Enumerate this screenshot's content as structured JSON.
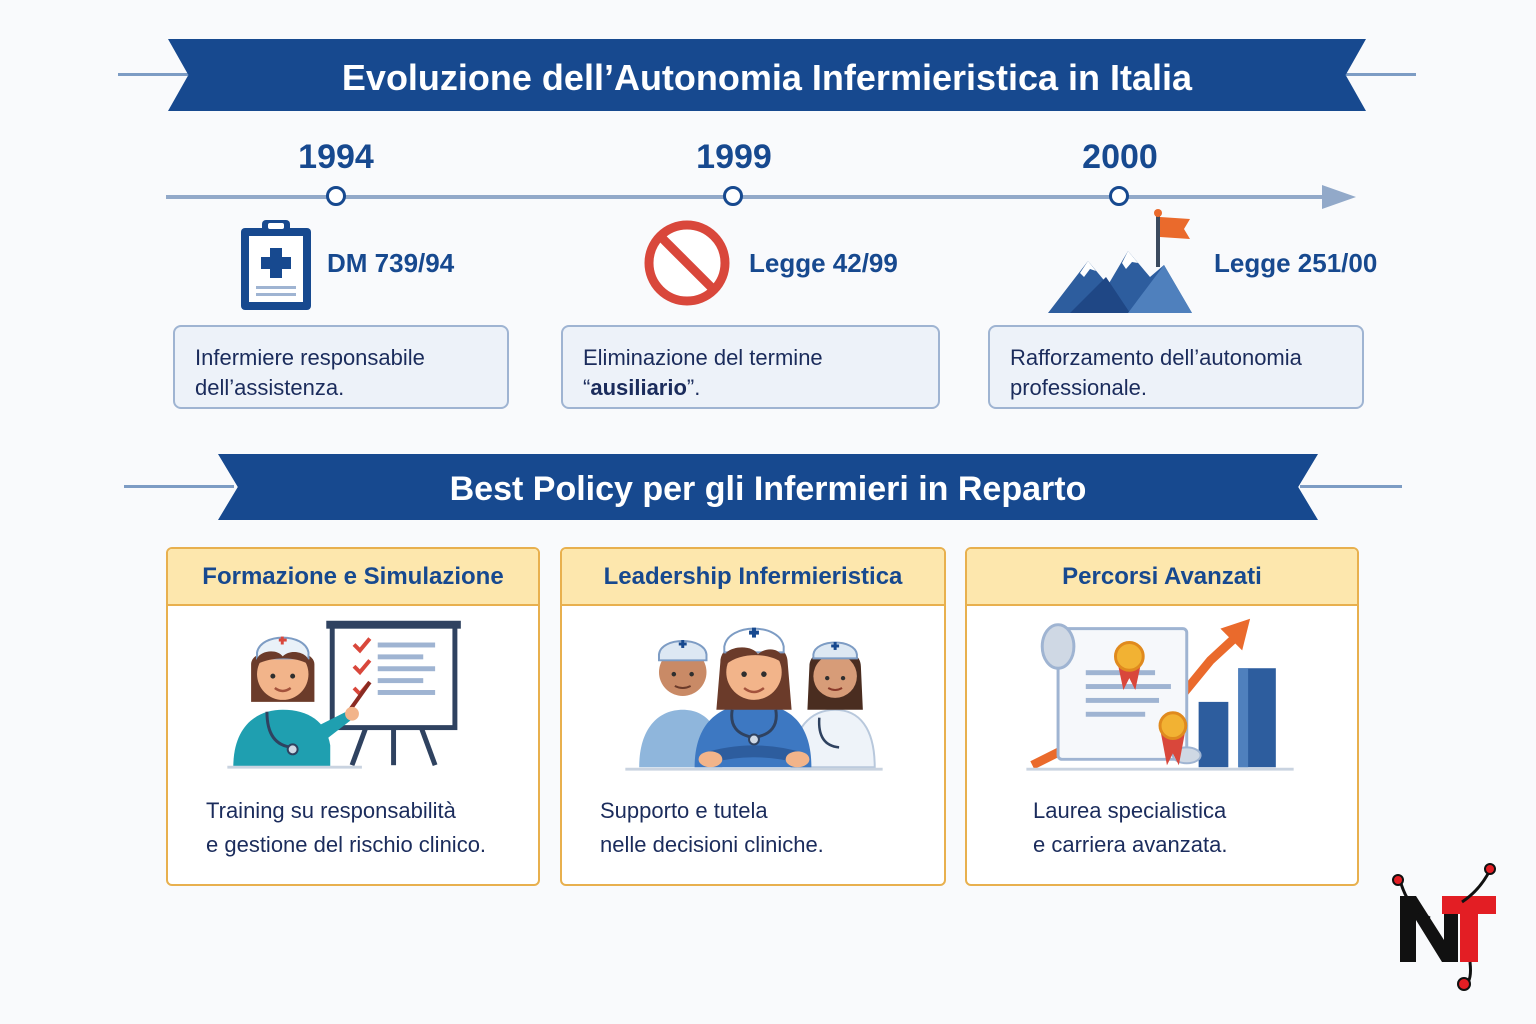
{
  "header": {
    "title": "Evoluzione dell’Autonomia Infermieristica in Italia"
  },
  "timeline": {
    "events": [
      {
        "year": "1994",
        "law": "DM 739/94",
        "icon": "clipboard-cross-icon",
        "desc_lines": [
          "Infermiere responsabile",
          "dell’assistenza."
        ]
      },
      {
        "year": "1999",
        "law": "Legge 42/99",
        "icon": "prohibition-icon",
        "desc_line1": "Eliminazione del termine",
        "desc_quote_open": "“",
        "desc_bold": "ausiliario",
        "desc_quote_close": "”."
      },
      {
        "year": "2000",
        "law": "Legge 251/00",
        "icon": "mountain-flag-icon",
        "desc_lines": [
          "Rafforzamento dell’autonomia",
          "professionale."
        ]
      }
    ]
  },
  "policies": {
    "title": "Best Policy per gli Infermieri in Reparto",
    "cards": [
      {
        "title": "Formazione e Simulazione",
        "icon": "nurse-presentation-icon",
        "lines": [
          "Training su responsabilità",
          "e gestione del rischio clinico."
        ]
      },
      {
        "title": "Leadership Infermieristica",
        "icon": "nurse-team-icon",
        "lines": [
          "Supporto e tutela",
          "nelle decisioni cliniche."
        ]
      },
      {
        "title": "Percorsi Avanzati",
        "icon": "diploma-growth-chart-icon",
        "lines": [
          "Laurea specialistica",
          "e carriera avanzata."
        ]
      }
    ]
  },
  "colors": {
    "navy": "#17498f",
    "gold_border": "#e8b04e",
    "card_header": "#fde7ad",
    "note_bg": "#edf2f9",
    "red": "#d9473b",
    "orange": "#ea6a2c"
  },
  "logo": {
    "text": "NT",
    "icon": "nt-stethoscope-logo"
  }
}
